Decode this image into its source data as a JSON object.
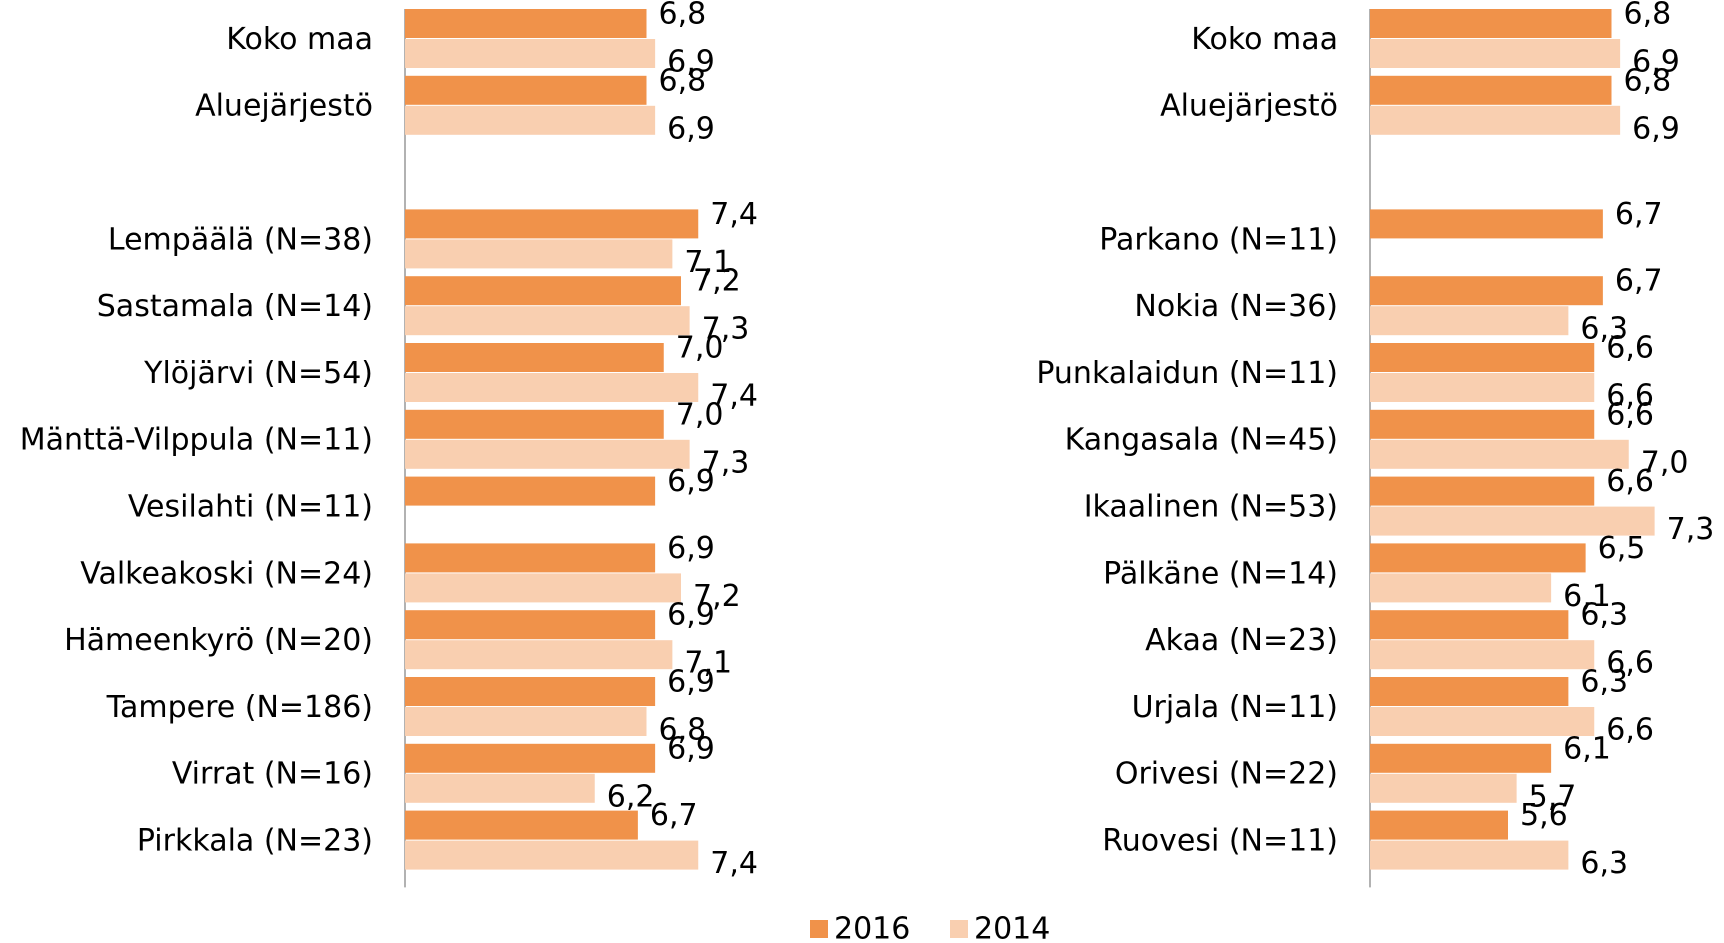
{
  "chart_data": [
    {
      "type": "barh",
      "categories": [
        "Koko maa",
        "Aluejärjestö",
        null,
        "Lempäälä (N=38)",
        "Sastamala (N=14)",
        "Ylöjärvi (N=54)",
        "Mänttä-Vilppula (N=11)",
        "Vesilahti (N=11)",
        "Valkeakoski (N=24)",
        "Hämeenkyrö (N=20)",
        "Tampere (N=186)",
        "Virrat (N=16)",
        "Pirkkala (N=23)"
      ],
      "series": [
        {
          "name": "2016",
          "color": "#f0924a",
          "values": [
            6.8,
            6.8,
            null,
            7.4,
            7.2,
            7.0,
            7.0,
            6.9,
            6.9,
            6.9,
            6.9,
            6.9,
            6.7
          ],
          "value_labels": [
            "6,8",
            "6,8",
            null,
            "7,4",
            "7,2",
            "7,0",
            "7,0",
            "6,9",
            "6,9",
            "6,9",
            "6,9",
            "6,9",
            "6,7"
          ]
        },
        {
          "name": "2014",
          "color": "#f9cfb0",
          "values": [
            6.9,
            6.9,
            null,
            7.1,
            7.3,
            7.4,
            7.3,
            null,
            7.2,
            7.1,
            6.8,
            6.2,
            7.4
          ],
          "value_labels": [
            "6,9",
            "6,9",
            null,
            "7,1",
            "7,3",
            "7,4",
            "7,3",
            null,
            "7,2",
            "7,1",
            "6,8",
            "6,2",
            "7,4"
          ]
        }
      ],
      "xlim": [
        4,
        8
      ],
      "legend": "bottom"
    },
    {
      "type": "barh",
      "categories": [
        "Koko maa",
        "Aluejärjestö",
        null,
        "Parkano (N=11)",
        "Nokia (N=36)",
        "Punkalaidun (N=11)",
        "Kangasala (N=45)",
        "Ikaalinen (N=53)",
        "Pälkäne (N=14)",
        "Akaa (N=23)",
        "Urjala (N=11)",
        "Orivesi (N=22)",
        "Ruovesi (N=11)"
      ],
      "series": [
        {
          "name": "2016",
          "color": "#f0924a",
          "values": [
            6.8,
            6.8,
            null,
            6.7,
            6.7,
            6.6,
            6.6,
            6.6,
            6.5,
            6.3,
            6.3,
            6.1,
            5.6
          ],
          "value_labels": [
            "6,8",
            "6,8",
            null,
            "6,7",
            "6,7",
            "6,6",
            "6,6",
            "6,6",
            "6,5",
            "6,3",
            "6,3",
            "6,1",
            "5,6"
          ]
        },
        {
          "name": "2014",
          "color": "#f9cfb0",
          "values": [
            6.9,
            6.9,
            null,
            null,
            6.3,
            6.6,
            7.0,
            7.3,
            6.1,
            6.6,
            6.6,
            5.7,
            6.3
          ],
          "value_labels": [
            "6,9",
            "6,9",
            null,
            null,
            "6,3",
            "6,6",
            "7,0",
            "7,3",
            "6,1",
            "6,6",
            "6,6",
            "5,7",
            "6,3"
          ]
        }
      ],
      "xlim": [
        4,
        8
      ]
    }
  ]
}
